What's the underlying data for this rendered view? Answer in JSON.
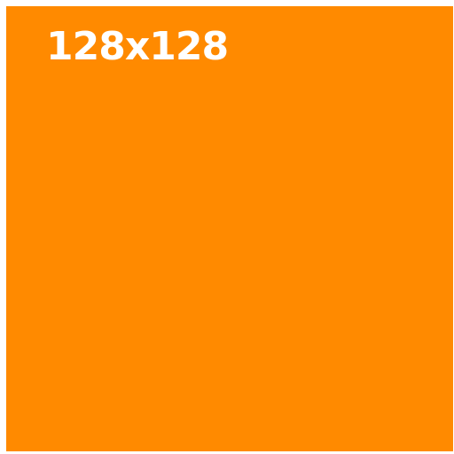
{
  "placeholder": {
    "label": "128x128",
    "background_color": "#FF8A00",
    "text_color": "#FFFFFF"
  }
}
